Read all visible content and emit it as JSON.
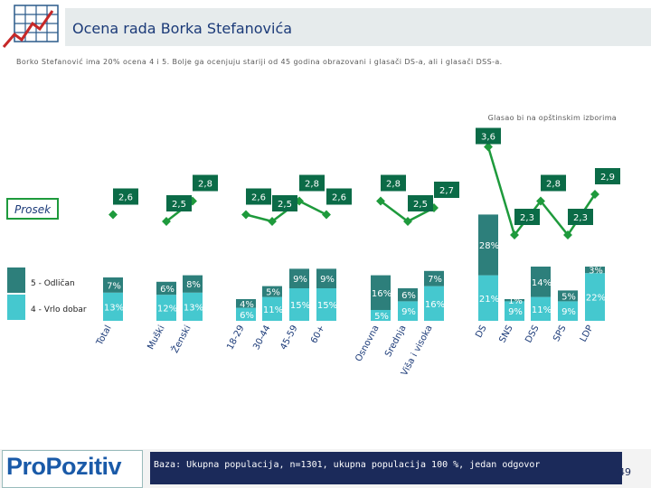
{
  "header": {
    "title": "Ocena rada Borka Stefanovića",
    "subtitle": "Borko Stefanović ima 20% ocena 4 i 5. Bolje ga ocenjuju stariji od 45 godina obrazovani i glasači DS-a, ali i glasači DSS-a."
  },
  "colors": {
    "dark": "#2d7f7b",
    "light": "#45c8cf",
    "line": "#1e9a3c",
    "avg_label_bg": "#0b6b47",
    "header_band": "#e6ebec"
  },
  "chart_data": {
    "type": "bar",
    "stacked": true,
    "title": "Ocena rada Borka Stefanovića",
    "group_label": "Glasao bi na opštinskim izborima",
    "categories": [
      "Total",
      "Muški",
      "Ženski",
      "18-29",
      "30-44",
      "45-59",
      "60+",
      "Osnovna",
      "Srednja",
      "Viša i visoka",
      "DS",
      "SNS",
      "DSS",
      "SPS",
      "LDP"
    ],
    "series": [
      {
        "name": "5 - Odličan",
        "values": [
          7,
          6,
          8,
          4,
          5,
          9,
          9,
          16,
          6,
          7,
          28,
          1,
          14,
          5,
          3
        ],
        "labels": [
          "7%",
          "6%",
          "8%",
          "4%",
          "5%",
          "9%",
          "9%",
          "16%",
          "6%",
          "7%",
          "28%",
          "1%",
          "14%",
          "5%",
          "3%"
        ]
      },
      {
        "name": "4 - Vrlo dobar",
        "values": [
          13,
          12,
          13,
          6,
          11,
          15,
          15,
          5,
          9,
          16,
          21,
          9,
          11,
          9,
          22
        ],
        "labels": [
          "13%",
          "12%",
          "13%",
          "6%",
          "11%",
          "15%",
          "15%",
          "5%",
          "9%",
          "16%",
          "21%",
          "9%",
          "11%",
          "9%",
          "22%"
        ]
      }
    ],
    "average": {
      "name": "Prosek",
      "values": [
        2.6,
        2.5,
        2.8,
        2.6,
        2.5,
        2.8,
        2.6,
        2.8,
        2.5,
        2.7,
        3.6,
        2.3,
        2.8,
        2.3,
        2.9
      ],
      "labels": [
        "2,6",
        "2,5",
        "2,8",
        "2,6",
        "2,5",
        "2,8",
        "2,6",
        "2,8",
        "2,5",
        "2,7",
        "3,6",
        "2,3",
        "2,8",
        "2,3",
        "2,9"
      ]
    },
    "xlabel": "",
    "ylabel": ""
  },
  "footer": {
    "logo": "ProPozitiv",
    "note": "Baza: Ukupna populacija, n=1301, ukupna populacija 100 %, jedan odgovor",
    "page": "49"
  }
}
